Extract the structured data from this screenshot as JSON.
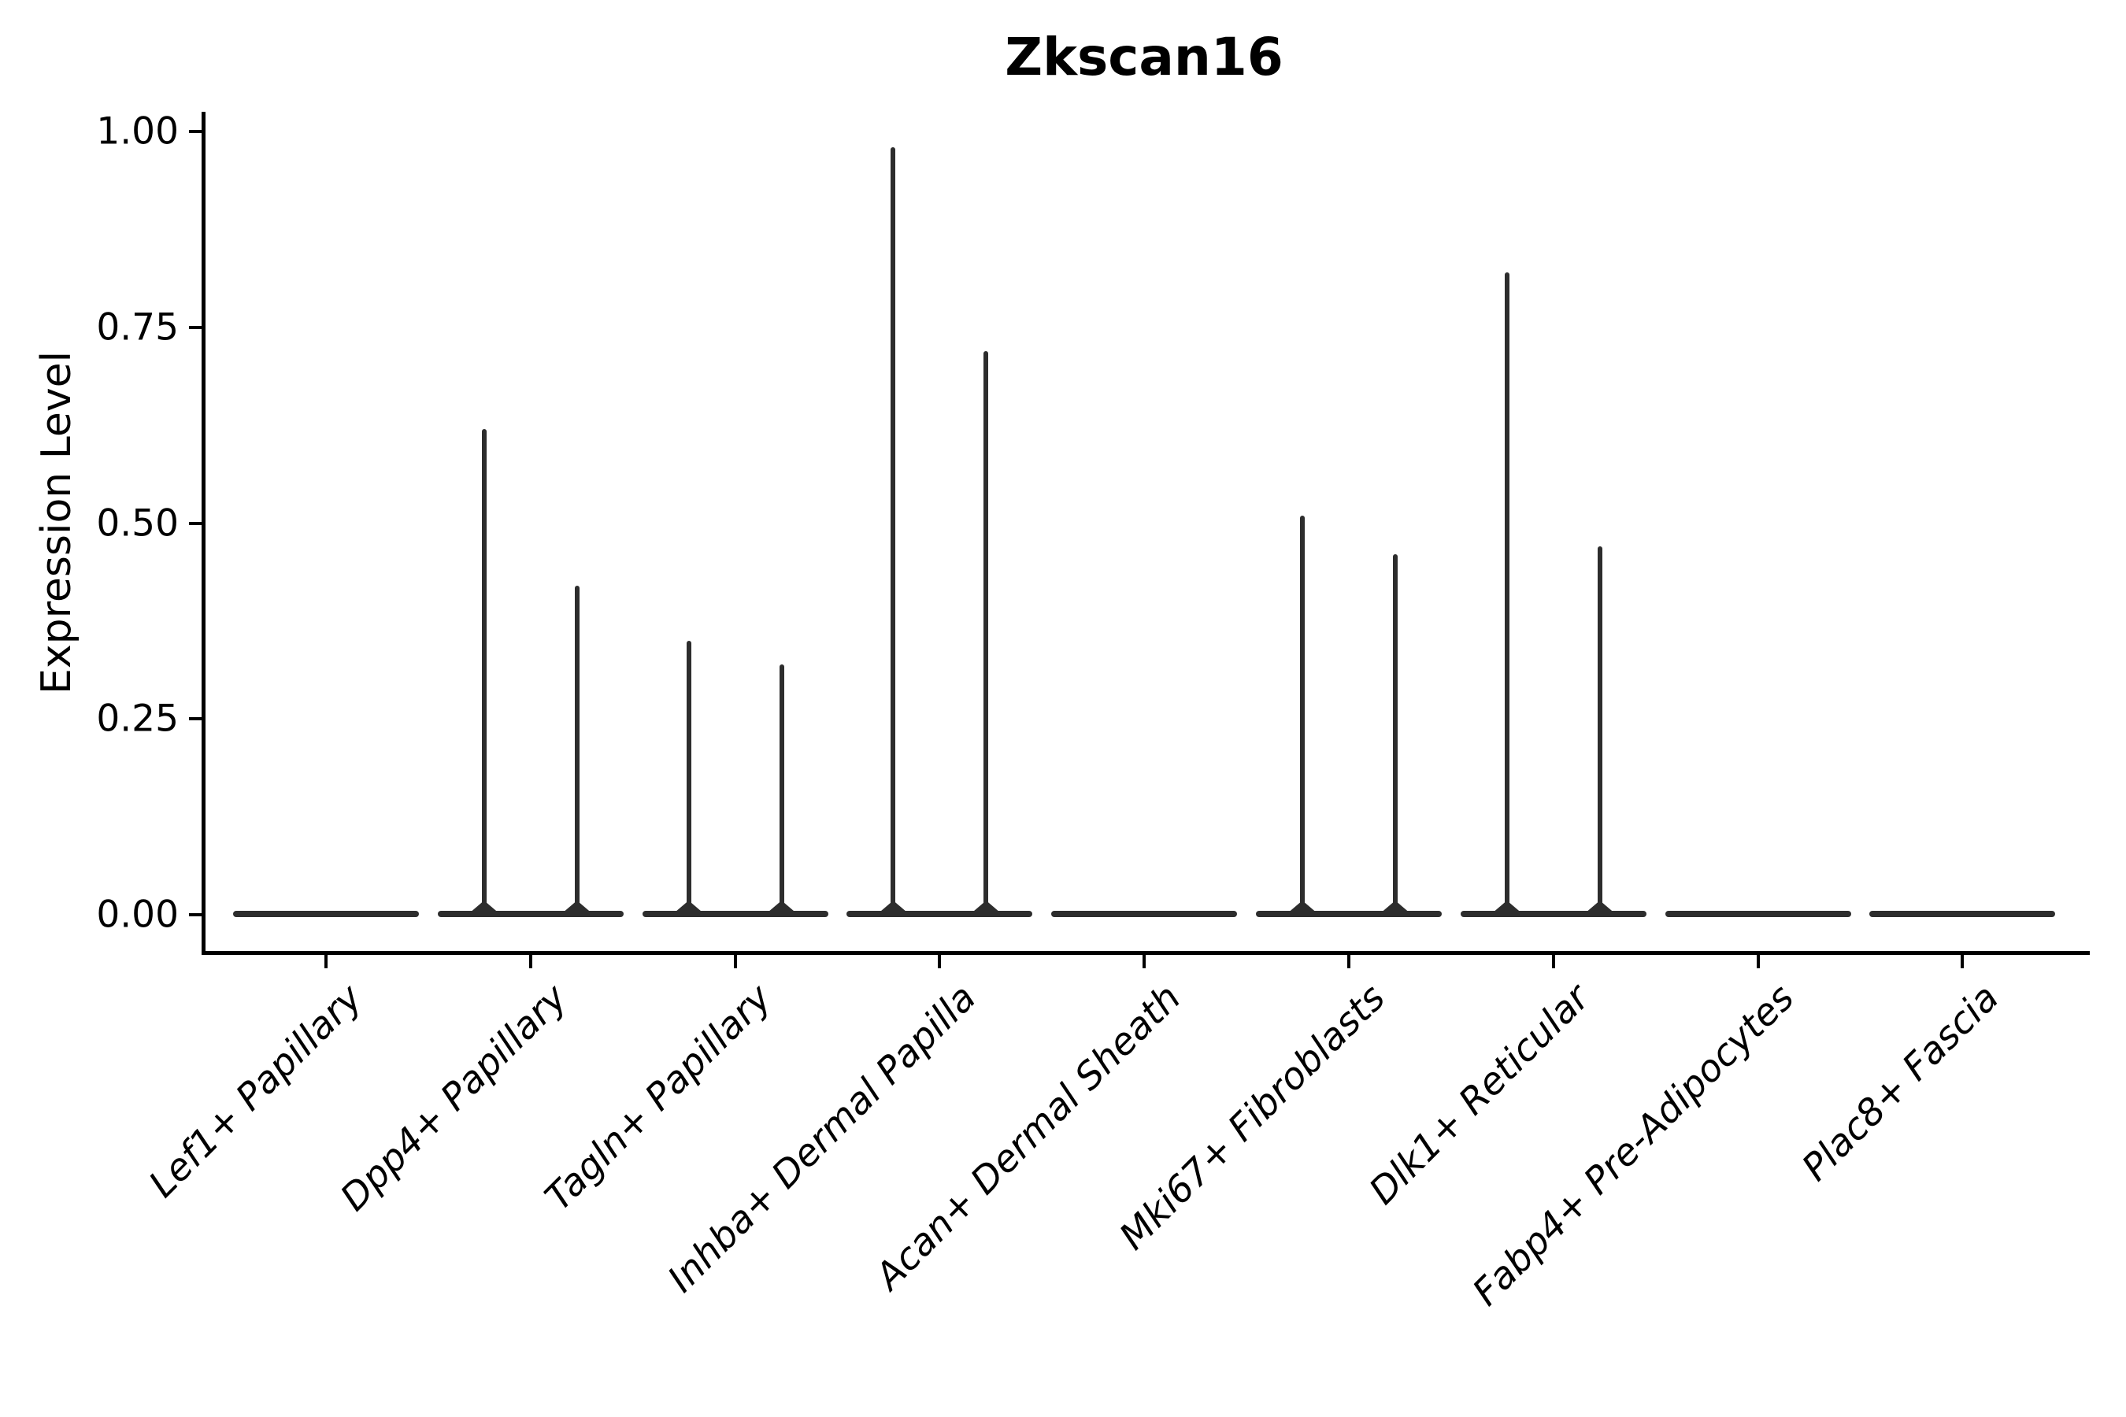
{
  "title": "Zkscan16",
  "y_axis": {
    "label": "Expression Level"
  },
  "colors": {
    "background": "#ffffff",
    "axis": "#000000",
    "text": "#000000",
    "violin": "#2d2d2d"
  },
  "chart_data": {
    "type": "violin",
    "title": "Zkscan16",
    "xlabel": "",
    "ylabel": "Expression Level",
    "ylim": [
      0.0,
      1.0
    ],
    "yticks": [
      0.0,
      0.25,
      0.5,
      0.75,
      1.0
    ],
    "ytick_labels": [
      "0.00",
      "0.25",
      "0.50",
      "0.75",
      "1.00"
    ],
    "grid": false,
    "legend_position": "none",
    "baseline_value": 0.0,
    "violins_per_category": 2,
    "categories": [
      "Lef1+ Papillary",
      "Dpp4+ Papillary",
      "Tagln+ Papillary",
      "Inhba+ Dermal Papilla",
      "Acan+ Dermal Sheath",
      "Mki67+ Fibroblasts",
      "Dlk1+ Reticular",
      "Fabp4+ Pre-Adipocytes",
      "Plac8+ Fascia"
    ],
    "series": [
      {
        "name": "left-violin",
        "peak_expression": [
          0,
          0.62,
          0.35,
          0.98,
          0,
          0.51,
          0.82,
          0,
          0
        ]
      },
      {
        "name": "right-violin",
        "peak_expression": [
          0,
          0.42,
          0.32,
          0.72,
          0,
          0.46,
          0.47,
          0,
          0
        ]
      }
    ]
  }
}
